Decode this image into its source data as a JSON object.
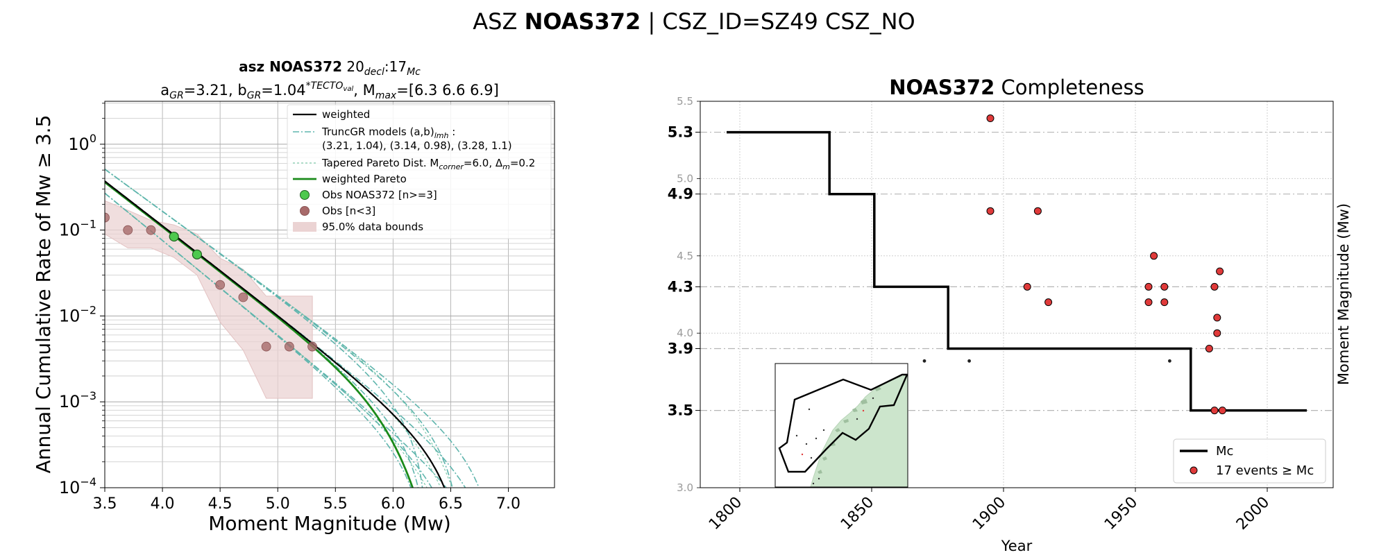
{
  "suptitle": {
    "prefix": "ASZ ",
    "bold": "NOAS372",
    "suffix": " | CSZ_ID=SZ49 CSZ_NO"
  },
  "chart_data": [
    {
      "type": "line",
      "panel": "left",
      "title_line1": {
        "bold": "asz NOAS372",
        "rest": "  20",
        "sub1": "decl",
        "mid": ":17",
        "sub2": "Mc"
      },
      "title_line2": {
        "a": "a",
        "a_sub": "GR",
        "a_val": "=3.21,  b",
        "b_sub": "GR",
        "b_val": "=1.04",
        "b_sup": "*TECTO",
        "b_sup_sub": "val",
        "mmax": ", M",
        "mmax_sub": "max",
        "mmax_val": "=[6.3 6.6 6.9]"
      },
      "xlabel": "Moment Magnitude (Mw)",
      "ylabel": "Annual Cumulative Rate of Mw  ≥  3.5",
      "xlim": [
        3.5,
        7.4
      ],
      "ylim_log10": [
        -4,
        0.5
      ],
      "y_scale": "log",
      "grid": true,
      "legend_position": "top-right",
      "x_ticks": [
        "3.5",
        "4.0",
        "4.5",
        "5.0",
        "5.5",
        "6.0",
        "6.5",
        "7.0"
      ],
      "y_ticks": [
        {
          "exp": 0,
          "base": "10",
          "sup": "0"
        },
        {
          "exp": -1,
          "base": "10",
          "sup": "−1"
        },
        {
          "exp": -2,
          "base": "10",
          "sup": "−2"
        },
        {
          "exp": -3,
          "base": "10",
          "sup": "−3"
        },
        {
          "exp": -4,
          "base": "10",
          "sup": "−4"
        }
      ],
      "legend": [
        {
          "kind": "line",
          "color": "#000000",
          "dash": "",
          "width": 2.2,
          "label": "weighted"
        },
        {
          "kind": "line",
          "color": "#5fb5ad",
          "dash": "9,3,2,3",
          "width": 1.6,
          "label": "TruncGR models (a,b)",
          "label_sub": "lmh",
          "label_after": " :",
          "label_line2": " (3.21, 1.04), (3.14, 0.98), (3.28, 1.1)"
        },
        {
          "kind": "line",
          "color": "#7cc8a8",
          "dash": "3,3",
          "width": 1.2,
          "label": "Tapered Pareto Dist. M",
          "label_sub": "corner",
          "label_after": "=6.0, Δ",
          "label_sub2": "m",
          "label_after2": "=0.2"
        },
        {
          "kind": "line",
          "color": "#1a8a1a",
          "dash": "",
          "width": 2.8,
          "label": "weighted Pareto"
        },
        {
          "kind": "marker",
          "color": "#4ec94e",
          "label": "Obs NOAS372 [n>=3]"
        },
        {
          "kind": "marker",
          "color": "#a86a6a",
          "label": "Obs [n<3]"
        },
        {
          "kind": "patch",
          "color": "#ebd3d3",
          "label": "95.0% data bounds"
        }
      ],
      "obs_low": {
        "x": [
          3.5,
          3.7,
          3.9,
          4.5,
          4.7,
          4.9,
          5.1,
          5.3
        ],
        "y": [
          0.14,
          0.1,
          0.1,
          0.023,
          0.0165,
          0.0044,
          0.0044,
          0.0044
        ]
      },
      "obs_high": {
        "x": [
          4.1,
          4.3
        ],
        "y": [
          0.084,
          0.052
        ]
      },
      "bounds": {
        "x": [
          3.5,
          3.7,
          3.9,
          4.1,
          4.3,
          4.5,
          4.7,
          4.9,
          5.1,
          5.3
        ],
        "upper": [
          0.22,
          0.17,
          0.13,
          0.115,
          0.09,
          0.047,
          0.035,
          0.017,
          0.017,
          0.017
        ],
        "lower": [
          0.09,
          0.062,
          0.062,
          0.048,
          0.03,
          0.0085,
          0.004,
          0.0011,
          0.0011,
          0.0011
        ]
      },
      "models": {
        "weighted": {
          "a": 3.21,
          "b": 1.04,
          "mmax": 6.6
        },
        "truncgr": [
          {
            "a": 3.21,
            "b": 1.04,
            "mmax": [
              6.3,
              6.6,
              6.9
            ]
          },
          {
            "a": 3.14,
            "b": 0.98,
            "mmax": [
              6.3,
              6.6,
              6.9
            ]
          },
          {
            "a": 3.28,
            "b": 1.1,
            "mmax": [
              6.3,
              6.6,
              6.9
            ]
          }
        ],
        "tapered": {
          "a": 3.21,
          "b": 1.04,
          "m_corner": 6.0,
          "delta_m": 0.2
        }
      }
    },
    {
      "type": "step",
      "panel": "right",
      "title": {
        "bold": "NOAS372",
        "rest": " Completeness"
      },
      "xlabel": "Year",
      "ylabel": "Moment Magnitude (Mw)",
      "xlim": [
        1785,
        2025
      ],
      "ylim": [
        3.0,
        5.5
      ],
      "x_ticks": [
        "1800",
        "1850",
        "1900",
        "1950",
        "2000"
      ],
      "y_ticks_minor": [
        "3.0",
        "4.0",
        "4.5",
        "5.0",
        "5.5"
      ],
      "y_ticks_major": [
        "3.5",
        "3.9",
        "4.3",
        "4.9",
        "5.3"
      ],
      "grid": true,
      "legend_position": "bottom-right",
      "legend": [
        {
          "kind": "line",
          "color": "#000000",
          "label": "Mc"
        },
        {
          "kind": "marker",
          "color": "#e03a3a",
          "label": "17 events  ≥  Mc"
        }
      ],
      "mc_steps": [
        {
          "year": 1795,
          "mc": 5.3
        },
        {
          "year": 1834,
          "mc": 4.9
        },
        {
          "year": 1851,
          "mc": 4.3
        },
        {
          "year": 1879,
          "mc": 3.9
        },
        {
          "year": 1971,
          "mc": 3.5
        },
        {
          "year": 2015,
          "mc": 3.5
        }
      ],
      "events_above": {
        "x": [
          1895,
          1895,
          1913,
          1909,
          1917,
          1957,
          1955,
          1955,
          1961,
          1961,
          1982,
          1980,
          1981,
          1981,
          1978,
          1980,
          1983
        ],
        "y": [
          5.39,
          4.79,
          4.79,
          4.3,
          4.2,
          4.5,
          4.3,
          4.2,
          4.3,
          4.2,
          4.4,
          4.3,
          4.1,
          4.0,
          3.9,
          3.5,
          3.5
        ]
      },
      "events_below": {
        "x": [
          1870,
          1887,
          1963
        ],
        "y": [
          3.82,
          3.82,
          3.82
        ]
      },
      "inset": {
        "type": "map",
        "land_color": "#cce5cc"
      }
    }
  ]
}
